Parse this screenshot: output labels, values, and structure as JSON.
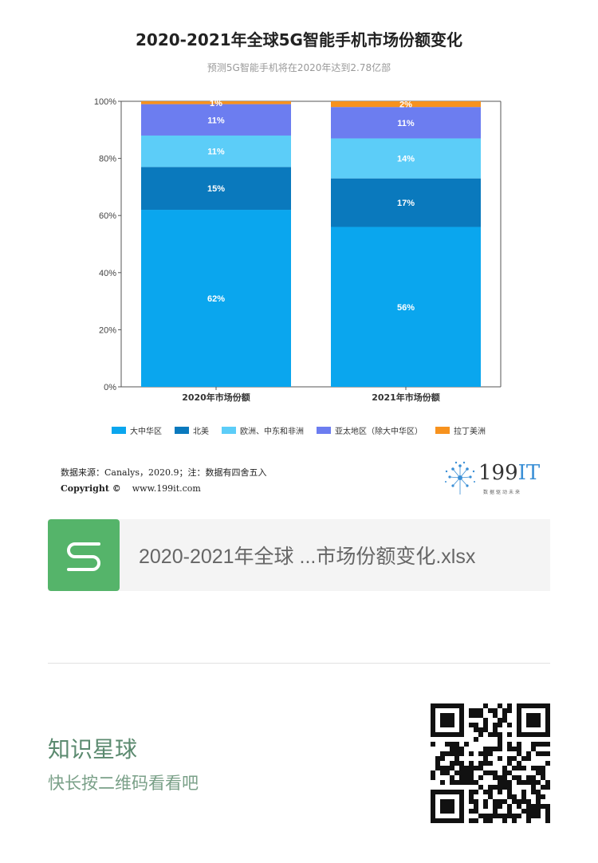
{
  "chart_data": {
    "type": "bar",
    "stacked": true,
    "title": "2020-2021年全球5G智能手机市场份额变化",
    "subtitle": "预测5G智能手机将在2020年达到2.78亿部",
    "categories": [
      "2020年市场份额",
      "2021年市场份额"
    ],
    "series": [
      {
        "name": "大中华区",
        "values": [
          62,
          56
        ],
        "color": "#0aa6ee"
      },
      {
        "name": "北美",
        "values": [
          15,
          17
        ],
        "color": "#0a79bd"
      },
      {
        "name": "欧洲、中东和非洲",
        "values": [
          11,
          14
        ],
        "color": "#5ccdf8"
      },
      {
        "name": "亚太地区（除大中华区）",
        "values": [
          11,
          11
        ],
        "color": "#6c7df0"
      },
      {
        "name": "拉丁美洲",
        "values": [
          1,
          2
        ],
        "color": "#f7921e"
      }
    ],
    "ylim": [
      0,
      100
    ],
    "yticks": [
      "0%",
      "20%",
      "40%",
      "60%",
      "80%",
      "100%"
    ],
    "legend_position": "bottom"
  },
  "footer": {
    "source": "数据来源：Canalys，2020.9；注：数据有四舍五入",
    "copyright_label": "Copyright ©",
    "copyright_url": "www.199it.com",
    "logo_number": "199",
    "logo_it": "IT",
    "logo_tagline": "数据驱动未来"
  },
  "file_card": {
    "filename": "2020-2021年全球 ...市场份额变化.xlsx",
    "icon": "spreadsheet-s-icon"
  },
  "promo": {
    "title": "知识星球",
    "subtitle": "快长按二维码看看吧",
    "qr_icon": "qr-code-icon"
  }
}
